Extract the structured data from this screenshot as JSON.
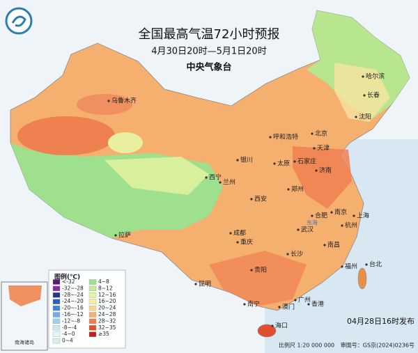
{
  "header": {
    "title": "全国最高气温72小时预报",
    "subtitle": "4月30日20时—5月1日20时",
    "agency": "中央气象台"
  },
  "legend": {
    "title": "图例(℃)",
    "items": [
      {
        "label": "<-32",
        "color": "#5a1a6e"
      },
      {
        "label": "-32~-28",
        "color": "#8a2aa8"
      },
      {
        "label": "-28~-24",
        "color": "#23358c"
      },
      {
        "label": "-24~-20",
        "color": "#2f5fbf"
      },
      {
        "label": "-20~-16",
        "color": "#3f84d8"
      },
      {
        "label": "-16~-12",
        "color": "#6eaee8"
      },
      {
        "label": "-12~-8",
        "color": "#9fd0f0"
      },
      {
        "label": "-8~-4",
        "color": "#c9e8f6"
      },
      {
        "label": "-4~0",
        "color": "#e6f5fb"
      },
      {
        "label": "0~4",
        "color": "#d6f2e2"
      },
      {
        "label": "4~8",
        "color": "#9fe08e"
      },
      {
        "label": "8~12",
        "color": "#c4ec98"
      },
      {
        "label": "12~16",
        "color": "#e6f4a0"
      },
      {
        "label": "16~20",
        "color": "#f6eea0"
      },
      {
        "label": "20~24",
        "color": "#f8d890"
      },
      {
        "label": "24~28",
        "color": "#f5b070"
      },
      {
        "label": "28~32",
        "color": "#ef8050"
      },
      {
        "label": "32~35",
        "color": "#e05030"
      },
      {
        "label": "≥35",
        "color": "#c02020"
      }
    ]
  },
  "cities": [
    "乌鲁木齐",
    "哈尔滨",
    "长春",
    "沈阳",
    "呼和浩特",
    "北京",
    "天津",
    "银川",
    "太原",
    "石家庄",
    "济南",
    "西宁",
    "兰州",
    "郑州",
    "西安",
    "南京",
    "合肥",
    "上海",
    "杭州",
    "武汉",
    "成都",
    "重庆",
    "拉萨",
    "南昌",
    "长沙",
    "福州",
    "贵阳",
    "台北",
    "昆明",
    "南宁",
    "广州",
    "澳门",
    "香港",
    "海口"
  ],
  "sea_labels": [
    "东海"
  ],
  "inset_label": "南海诸岛",
  "footer": {
    "issued": "04月28日16时发布",
    "scale": "比例尺 1:20 000 000",
    "map_number": "审图号：GS京(2024)0236号"
  }
}
